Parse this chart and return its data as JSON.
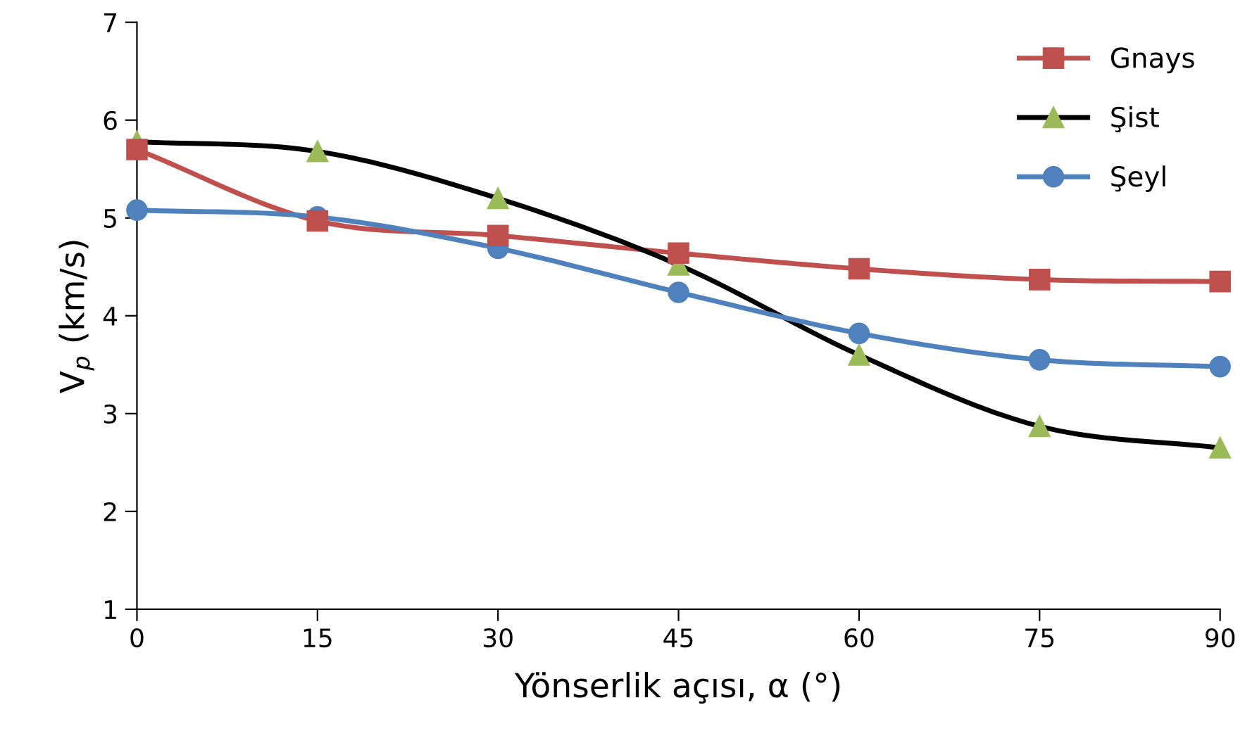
{
  "chart_data": {
    "type": "line",
    "xlabel": "Yönserlik açısı, α (°)",
    "ylabel": "V$_{p}$ (km/s)",
    "x": [
      0,
      15,
      30,
      45,
      60,
      75,
      90
    ],
    "xlim": [
      0,
      90
    ],
    "xticks": [
      0,
      15,
      30,
      45,
      60,
      75,
      90
    ],
    "ylim": [
      1,
      7
    ],
    "yticks": [
      1,
      2,
      3,
      4,
      5,
      6,
      7
    ],
    "grid": false,
    "legend": "top right",
    "line_style": "solid",
    "series": [
      {
        "name": "Gnays",
        "color": "#c0504d",
        "marker": "square",
        "values": [
          5.7,
          4.97,
          4.82,
          4.64,
          4.48,
          4.37,
          4.35
        ]
      },
      {
        "name": "Şist",
        "color": "#000000",
        "colors": [
          "#9bbb59",
          "#9bbb59",
          "#9bbb59",
          "#9bbb59",
          "#9bbb59",
          "#9bbb59",
          "#9bbb59"
        ],
        "marker": "triangle",
        "values": [
          5.78,
          5.68,
          5.2,
          4.52,
          3.6,
          2.87,
          2.65
        ]
      },
      {
        "name": "Şeyl",
        "color": "#4f81bd",
        "marker": "circle",
        "values": [
          5.08,
          5.01,
          4.69,
          4.24,
          3.82,
          3.55,
          3.48
        ]
      }
    ]
  }
}
